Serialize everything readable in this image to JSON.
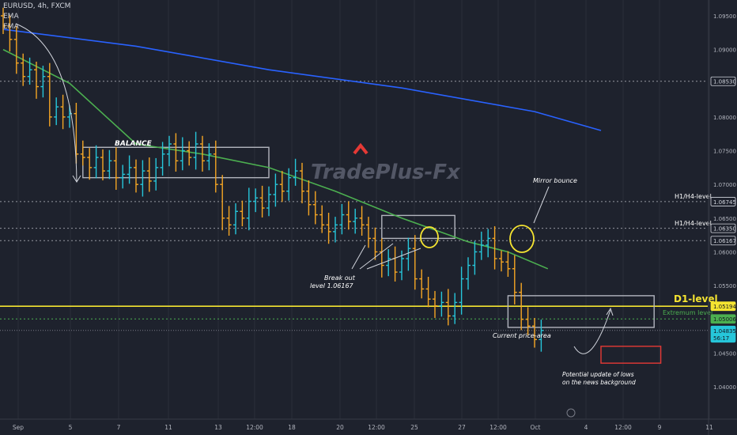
{
  "header": {
    "symbol_line": "EURUSD, 4h, FXCM",
    "indicator_1": "EMA",
    "indicator_2": "EMA"
  },
  "watermark": "TradePlus-Fx",
  "price_axis": {
    "ticks": [
      "1.09500",
      "1.09000",
      "1.08000",
      "1.07500",
      "1.07000",
      "1.06500",
      "1.06000",
      "1.05500",
      "1.04500",
      "1.04000"
    ],
    "tick_values": [
      1.095,
      1.09,
      1.08,
      1.075,
      1.07,
      1.065,
      1.06,
      1.055,
      1.045,
      1.04
    ]
  },
  "time_axis": {
    "labels": [
      "Sep",
      "5",
      "7",
      "11",
      "13",
      "12:00",
      "18",
      "20",
      "12:00",
      "25",
      "27",
      "12:00",
      "Oct",
      "4",
      "12:00",
      "9",
      "11"
    ]
  },
  "price_tags": [
    {
      "label": "1.08530",
      "value": 1.0853,
      "bg": "#1e222d",
      "fg": "#d1d4dc",
      "border": "#d1d4dc"
    },
    {
      "label": "1.06745",
      "value": 1.06745,
      "bg": "#1e222d",
      "fg": "#d1d4dc",
      "border": "#d1d4dc"
    },
    {
      "label": "1.06350",
      "value": 1.0635,
      "bg": "#1e222d",
      "fg": "#d1d4dc",
      "border": "#d1d4dc"
    },
    {
      "label": "1.06167",
      "value": 1.06167,
      "bg": "#1e222d",
      "fg": "#d1d4dc",
      "border": "#d1d4dc"
    },
    {
      "label": "1.05194",
      "value": 1.05194,
      "bg": "#f5e431",
      "fg": "#131722",
      "border": "#f5e431"
    },
    {
      "label": "1.05006",
      "value": 1.05006,
      "bg": "#4caf50",
      "fg": "#131722",
      "border": "#4caf50"
    },
    {
      "label": "1.04835",
      "value": 1.04835,
      "bg": "#26c6da",
      "fg": "#131722",
      "border": "#26c6da"
    },
    {
      "label": "56:17",
      "value": 1.04725,
      "bg": "#26c6da",
      "fg": "#131722",
      "border": "#26c6da"
    }
  ],
  "annotations": {
    "balance": "BALANCE",
    "mirror_bounce": "Mirror bounce",
    "h1h4_level_1": "H1/H4-level",
    "h1h4_level_2": "H1/H4-level",
    "d1_level": "D1-level",
    "extremum_level": "Extremum level",
    "break_out_1": "Break out",
    "break_out_2": "level 1.06167",
    "current_price_area": "Current price-area",
    "potential_1": "Potential update of lows",
    "potential_2": "on the news background"
  },
  "colors": {
    "up": "#26c6da",
    "down": "#f5a623",
    "ema_fast": "#4caf50",
    "ema_slow": "#2962ff",
    "d1": "#f5e431",
    "extremum": "#4caf50",
    "target_box": "#e53935"
  },
  "chart_data": {
    "type": "candlestick",
    "symbol": "EURUSD",
    "timeframe": "4h",
    "close_path": [
      1.0935,
      1.0915,
      1.088,
      1.086,
      1.087,
      1.0845,
      1.086,
      1.08,
      1.0815,
      1.08,
      1.0805,
      1.0745,
      1.074,
      1.0725,
      1.074,
      1.072,
      1.0735,
      1.071,
      1.0715,
      1.0725,
      1.07,
      1.072,
      1.0705,
      1.0725,
      1.0745,
      1.076,
      1.0735,
      1.075,
      1.074,
      1.076,
      1.0735,
      1.0745,
      1.07,
      1.065,
      1.064,
      1.066,
      1.065,
      1.0675,
      1.068,
      1.0665,
      1.0685,
      1.07,
      1.069,
      1.071,
      1.072,
      1.069,
      1.067,
      1.0655,
      1.064,
      1.063,
      1.064,
      1.0655,
      1.0645,
      1.065,
      1.064,
      1.062,
      1.06,
      1.058,
      1.059,
      1.057,
      1.059,
      1.0605,
      1.056,
      1.0545,
      1.053,
      1.052,
      1.0525,
      1.0505,
      1.0525,
      1.056,
      1.058,
      1.06,
      1.061,
      1.062,
      1.059,
      1.0585,
      1.0575,
      1.054,
      1.05,
      1.049,
      1.047,
      1.04835
    ],
    "ema_fast": [
      [
        0,
        1.09
      ],
      [
        10,
        1.085
      ],
      [
        20,
        1.076
      ],
      [
        30,
        1.0745
      ],
      [
        40,
        1.0725
      ],
      [
        50,
        1.069
      ],
      [
        60,
        1.065
      ],
      [
        70,
        1.0615
      ],
      [
        76,
        1.06
      ],
      [
        82,
        1.0575
      ]
    ],
    "ema_slow": [
      [
        0,
        1.093
      ],
      [
        20,
        1.0905
      ],
      [
        40,
        1.087
      ],
      [
        60,
        1.0843
      ],
      [
        80,
        1.0808
      ],
      [
        90,
        1.078
      ]
    ],
    "levels": {
      "h1h4_upper": 1.06745,
      "h1h4_lower": 1.0635,
      "breakout": 1.06167,
      "d1": 1.05194,
      "extremum": 1.05006,
      "current": 1.04835,
      "dotted_top": 1.0853
    },
    "zones": {
      "balance": {
        "from": 12,
        "to": 40,
        "high": 1.0755,
        "low": 1.071
      },
      "breakout_range": {
        "from": 57,
        "to": 68,
        "high": 1.0654,
        "low": 1.062
      },
      "current_area": {
        "from": 76,
        "to": 98,
        "high": 1.0535,
        "low": 1.0488
      },
      "target": {
        "from": 90,
        "to": 99,
        "high": 1.046,
        "low": 1.0435
      }
    }
  }
}
